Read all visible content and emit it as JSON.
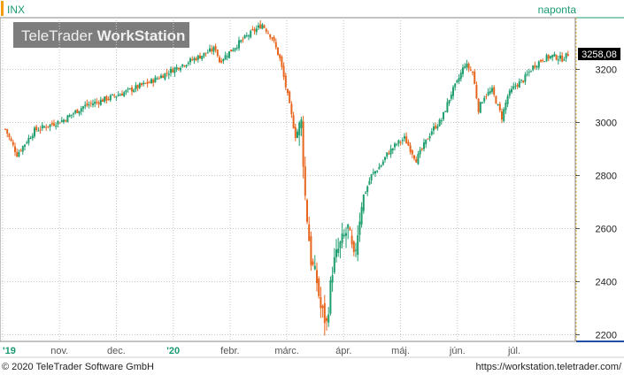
{
  "header": {
    "symbol": "INX",
    "period": "naponta"
  },
  "watermark": {
    "text_light": "TeleTrader",
    "text_bold": "WorkStation"
  },
  "footer": {
    "copyright": "© 2020 TeleTrader Software GmbH",
    "url": "https://workstation.teletrader.com/"
  },
  "colors": {
    "up": "#1f9e6e",
    "down": "#e8651d",
    "grid": "#c8c8c8",
    "header_text": "#1a9a72",
    "accent": "#f39c12",
    "price_tag_bg": "#000000"
  },
  "chart_data": {
    "type": "candlestick",
    "title": "INX",
    "frequency": "naponta",
    "last_price_label": "3258,08",
    "last_price": 3258.08,
    "ylim": [
      2175,
      3395
    ],
    "y_ticks": [
      2200,
      2400,
      2600,
      2800,
      3000,
      3200
    ],
    "y_tick_labels": [
      "2200",
      "2400",
      "2600",
      "2800",
      "3000",
      "3200"
    ],
    "grid": true,
    "x_tick_labels": [
      "'19",
      "nov.",
      "dec.",
      "'20",
      "febr.",
      "márc.",
      "ápr.",
      "máj.",
      "jún.",
      "júl."
    ],
    "x_tick_bold": [
      "'19",
      "'20"
    ],
    "price_path": [
      [
        0,
        2975
      ],
      [
        6,
        2880
      ],
      [
        15,
        2970
      ],
      [
        30,
        3010
      ],
      [
        40,
        3060
      ],
      [
        60,
        3110
      ],
      [
        75,
        3155
      ],
      [
        90,
        3215
      ],
      [
        100,
        3250
      ],
      [
        108,
        3280
      ],
      [
        110,
        3230
      ],
      [
        120,
        3300
      ],
      [
        125,
        3330
      ],
      [
        132,
        3370
      ],
      [
        137,
        3320
      ],
      [
        141,
        3240
      ],
      [
        145,
        3100
      ],
      [
        149,
        2950
      ],
      [
        152,
        3000
      ],
      [
        154,
        2720
      ],
      [
        157,
        2480
      ],
      [
        160,
        2400
      ],
      [
        162,
        2300
      ],
      [
        165,
        2240
      ],
      [
        168,
        2450
      ],
      [
        171,
        2520
      ],
      [
        176,
        2600
      ],
      [
        179,
        2480
      ],
      [
        183,
        2700
      ],
      [
        188,
        2800
      ],
      [
        193,
        2840
      ],
      [
        196,
        2880
      ],
      [
        201,
        2920
      ],
      [
        205,
        2940
      ],
      [
        211,
        2860
      ],
      [
        214,
        2900
      ],
      [
        219,
        2970
      ],
      [
        224,
        3010
      ],
      [
        229,
        3110
      ],
      [
        232,
        3150
      ],
      [
        236,
        3220
      ],
      [
        240,
        3190
      ],
      [
        243,
        3050
      ],
      [
        246,
        3100
      ],
      [
        250,
        3120
      ],
      [
        255,
        3020
      ],
      [
        258,
        3100
      ],
      [
        262,
        3140
      ],
      [
        266,
        3160
      ],
      [
        271,
        3210
      ],
      [
        276,
        3240
      ],
      [
        281,
        3250
      ],
      [
        286,
        3240
      ],
      [
        289,
        3258
      ]
    ]
  }
}
